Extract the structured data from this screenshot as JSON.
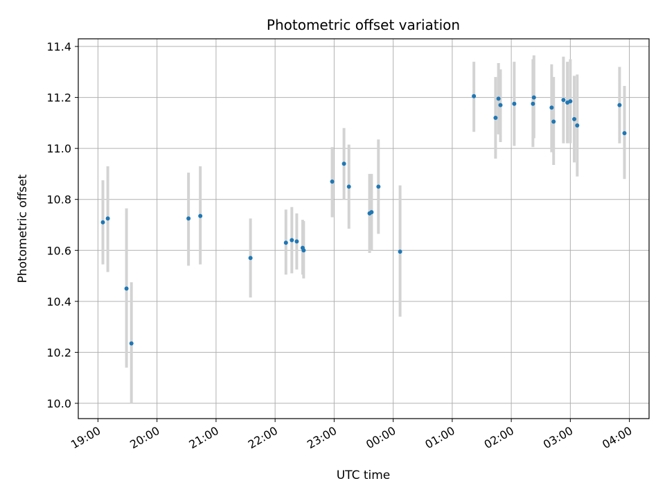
{
  "chart_data": {
    "type": "scatter",
    "title": "Photometric offset variation",
    "xlabel": "UTC time",
    "ylabel": "Photometric offset",
    "xlim": [
      "18:40",
      "04:20"
    ],
    "ylim": [
      9.94,
      11.43
    ],
    "grid": true,
    "legend": "none",
    "x_ticks": [
      "19:00",
      "20:00",
      "21:00",
      "22:00",
      "23:00",
      "00:00",
      "01:00",
      "02:00",
      "03:00",
      "04:00"
    ],
    "y_ticks": [
      "10.0",
      "10.2",
      "10.4",
      "10.6",
      "10.8",
      "11.0",
      "11.2",
      "11.4"
    ],
    "point_color": "#1f77b4",
    "errorbar_color": "#d3d3d3",
    "points": [
      {
        "t": "19:05",
        "y": 10.71,
        "lo": 10.545,
        "hi": 10.875
      },
      {
        "t": "19:10",
        "y": 10.725,
        "lo": 10.515,
        "hi": 10.93
      },
      {
        "t": "19:29",
        "y": 10.45,
        "lo": 10.14,
        "hi": 10.765
      },
      {
        "t": "19:34",
        "y": 10.235,
        "lo": 10.0,
        "hi": 10.475
      },
      {
        "t": "20:32",
        "y": 10.725,
        "lo": 10.54,
        "hi": 10.905
      },
      {
        "t": "20:44",
        "y": 10.735,
        "lo": 10.545,
        "hi": 10.93
      },
      {
        "t": "21:35",
        "y": 10.57,
        "lo": 10.415,
        "hi": 10.725
      },
      {
        "t": "22:11",
        "y": 10.63,
        "lo": 10.505,
        "hi": 10.76
      },
      {
        "t": "22:17",
        "y": 10.64,
        "lo": 10.51,
        "hi": 10.77
      },
      {
        "t": "22:22",
        "y": 10.635,
        "lo": 10.525,
        "hi": 10.745
      },
      {
        "t": "22:28",
        "y": 10.61,
        "lo": 10.505,
        "hi": 10.72
      },
      {
        "t": "22:29",
        "y": 10.6,
        "lo": 10.49,
        "hi": 10.715
      },
      {
        "t": "22:58",
        "y": 10.87,
        "lo": 10.73,
        "hi": 11.005
      },
      {
        "t": "23:10",
        "y": 10.94,
        "lo": 10.8,
        "hi": 11.08
      },
      {
        "t": "23:15",
        "y": 10.85,
        "lo": 10.685,
        "hi": 11.015
      },
      {
        "t": "23:36",
        "y": 10.745,
        "lo": 10.59,
        "hi": 10.9
      },
      {
        "t": "23:38",
        "y": 10.75,
        "lo": 10.6,
        "hi": 10.9
      },
      {
        "t": "23:45",
        "y": 10.85,
        "lo": 10.665,
        "hi": 11.035
      },
      {
        "t": "00:07",
        "y": 10.595,
        "lo": 10.34,
        "hi": 10.855
      },
      {
        "t": "01:22",
        "y": 11.205,
        "lo": 11.065,
        "hi": 11.34
      },
      {
        "t": "01:44",
        "y": 11.12,
        "lo": 10.96,
        "hi": 11.28
      },
      {
        "t": "01:47",
        "y": 11.195,
        "lo": 11.055,
        "hi": 11.335
      },
      {
        "t": "01:49",
        "y": 11.17,
        "lo": 11.025,
        "hi": 11.31
      },
      {
        "t": "02:03",
        "y": 11.175,
        "lo": 11.01,
        "hi": 11.34
      },
      {
        "t": "02:22",
        "y": 11.175,
        "lo": 11.005,
        "hi": 11.35
      },
      {
        "t": "02:23",
        "y": 11.2,
        "lo": 11.04,
        "hi": 11.365
      },
      {
        "t": "02:41",
        "y": 11.16,
        "lo": 10.985,
        "hi": 11.33
      },
      {
        "t": "02:43",
        "y": 11.105,
        "lo": 10.935,
        "hi": 11.28
      },
      {
        "t": "02:53",
        "y": 11.19,
        "lo": 11.02,
        "hi": 11.36
      },
      {
        "t": "02:57",
        "y": 11.18,
        "lo": 11.02,
        "hi": 11.34
      },
      {
        "t": "03:00",
        "y": 11.185,
        "lo": 11.02,
        "hi": 11.35
      },
      {
        "t": "03:04",
        "y": 11.115,
        "lo": 10.945,
        "hi": 11.285
      },
      {
        "t": "03:07",
        "y": 11.09,
        "lo": 10.89,
        "hi": 11.29
      },
      {
        "t": "03:50",
        "y": 11.17,
        "lo": 11.02,
        "hi": 11.32
      },
      {
        "t": "03:55",
        "y": 11.06,
        "lo": 10.88,
        "hi": 11.245
      }
    ]
  }
}
